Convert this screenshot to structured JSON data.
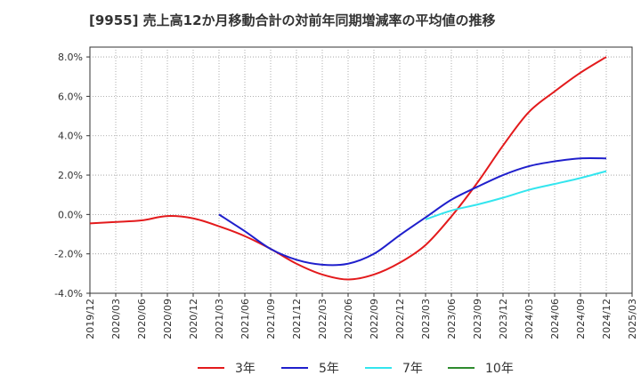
{
  "chart_data": {
    "type": "line",
    "title": "[9955]  売上高12か月移動合計の対前年同期増減率の平均値の推移",
    "xlabel": "",
    "ylabel": "",
    "ylim": [
      -4.0,
      8.5
    ],
    "y_ticks": [
      -4.0,
      -2.0,
      0.0,
      2.0,
      4.0,
      6.0,
      8.0
    ],
    "y_tick_labels": [
      "-4.0%",
      "-2.0%",
      "0.0%",
      "2.0%",
      "4.0%",
      "6.0%",
      "8.0%"
    ],
    "x_tick_labels": [
      "2019/12",
      "2020/03",
      "2020/06",
      "2020/09",
      "2020/12",
      "2021/03",
      "2021/06",
      "2021/09",
      "2021/12",
      "2022/03",
      "2022/06",
      "2022/09",
      "2022/12",
      "2023/03",
      "2023/06",
      "2023/09",
      "2023/12",
      "2024/03",
      "2024/06",
      "2024/09",
      "2024/12",
      "2025/03"
    ],
    "grid": true,
    "legend_position": "bottom",
    "series": [
      {
        "name": "3年",
        "color": "#e31a1c",
        "points": [
          [
            "2019/12",
            -0.45
          ],
          [
            "2020/03",
            -0.38
          ],
          [
            "2020/06",
            -0.3
          ],
          [
            "2020/09",
            -0.08
          ],
          [
            "2020/12",
            -0.2
          ],
          [
            "2021/03",
            -0.6
          ],
          [
            "2021/06",
            -1.1
          ],
          [
            "2021/09",
            -1.75
          ],
          [
            "2021/12",
            -2.5
          ],
          [
            "2022/03",
            -3.05
          ],
          [
            "2022/06",
            -3.3
          ],
          [
            "2022/09",
            -3.05
          ],
          [
            "2022/12",
            -2.45
          ],
          [
            "2023/03",
            -1.55
          ],
          [
            "2023/06",
            -0.1
          ],
          [
            "2023/09",
            1.6
          ],
          [
            "2023/12",
            3.5
          ],
          [
            "2024/03",
            5.2
          ],
          [
            "2024/06",
            6.25
          ],
          [
            "2024/09",
            7.2
          ],
          [
            "2024/12",
            8.0
          ]
        ]
      },
      {
        "name": "5年",
        "color": "#1f1fcc",
        "points": [
          [
            "2021/03",
            0.0
          ],
          [
            "2021/06",
            -0.85
          ],
          [
            "2021/09",
            -1.75
          ],
          [
            "2021/12",
            -2.3
          ],
          [
            "2022/03",
            -2.55
          ],
          [
            "2022/06",
            -2.5
          ],
          [
            "2022/09",
            -2.0
          ],
          [
            "2022/12",
            -1.05
          ],
          [
            "2023/03",
            -0.15
          ],
          [
            "2023/06",
            0.75
          ],
          [
            "2023/09",
            1.4
          ],
          [
            "2023/12",
            2.0
          ],
          [
            "2024/03",
            2.45
          ],
          [
            "2024/06",
            2.7
          ],
          [
            "2024/09",
            2.85
          ],
          [
            "2024/12",
            2.85
          ]
        ]
      },
      {
        "name": "7年",
        "color": "#33e5ee",
        "points": [
          [
            "2023/03",
            -0.25
          ],
          [
            "2023/06",
            0.2
          ],
          [
            "2023/09",
            0.5
          ],
          [
            "2023/12",
            0.85
          ],
          [
            "2024/03",
            1.25
          ],
          [
            "2024/06",
            1.55
          ],
          [
            "2024/09",
            1.85
          ],
          [
            "2024/12",
            2.2
          ]
        ]
      },
      {
        "name": "10年",
        "color": "#2e8b2e",
        "points": []
      }
    ]
  }
}
